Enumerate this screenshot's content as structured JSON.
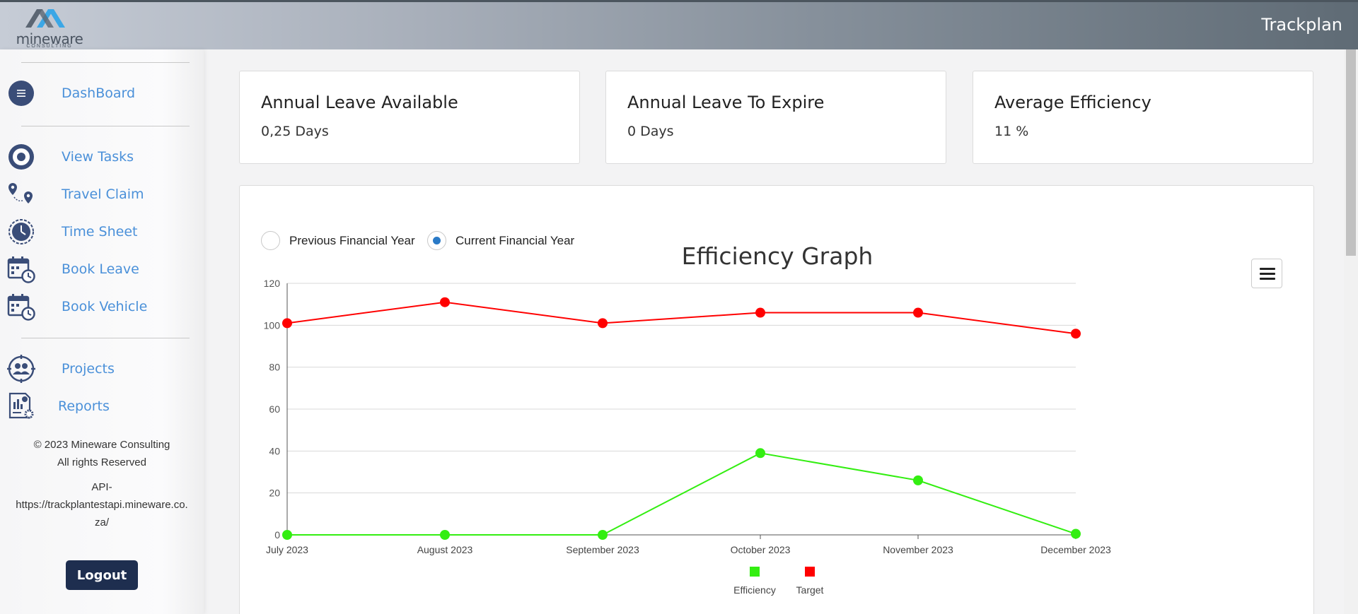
{
  "header": {
    "brand": "mineware",
    "brand_sub": "CONSULTING",
    "app_title": "Trackplan"
  },
  "sidebar": {
    "items": [
      {
        "label": "DashBoard",
        "icon": "menu-icon"
      },
      {
        "label": "View Tasks",
        "icon": "target-icon"
      },
      {
        "label": "Travel Claim",
        "icon": "map-pin-icon"
      },
      {
        "label": "Time Sheet",
        "icon": "clock-icon"
      },
      {
        "label": "Book Leave",
        "icon": "calendar-clock-icon"
      },
      {
        "label": "Book Vehicle",
        "icon": "calendar-clock-icon"
      },
      {
        "label": "Projects",
        "icon": "team-icon"
      },
      {
        "label": "Reports",
        "icon": "report-icon"
      }
    ],
    "footer": {
      "copyright": "© 2023 Mineware Consulting",
      "rights": "All rights Reserved",
      "api_label": "API-",
      "api_url_line1": "https://trackplantestapi.mineware.co.",
      "api_url_line2": "za/"
    },
    "logout_label": "Logout"
  },
  "cards": [
    {
      "title": "Annual Leave Available",
      "value": "0,25 Days"
    },
    {
      "title": "Annual Leave To Expire",
      "value": "0 Days"
    },
    {
      "title": "Average Efficiency",
      "value": "11 %"
    }
  ],
  "filters": {
    "previous_label": "Previous Financial Year",
    "current_label": "Current Financial Year",
    "selected": "current"
  },
  "colors": {
    "efficiency": "#33ee11",
    "target": "#ff0000",
    "radio_selected": "#2a7ac7",
    "logout_bg": "#1e2e4f",
    "link": "#4a90d9"
  },
  "chart_data": {
    "type": "line",
    "title": "Efficiency Graph",
    "categories": [
      "July 2023",
      "August 2023",
      "September 2023",
      "October 2023",
      "November 2023",
      "December 2023"
    ],
    "series": [
      {
        "name": "Efficiency",
        "values": [
          0,
          0,
          0,
          39,
          26,
          0.5
        ]
      },
      {
        "name": "Target",
        "values": [
          101,
          111,
          101,
          106,
          106,
          96
        ]
      }
    ],
    "ylim": [
      0,
      120
    ],
    "yticks": [
      0,
      20,
      40,
      60,
      80,
      100,
      120
    ],
    "xlabel": "",
    "ylabel": "",
    "grid": true,
    "legend": "bottom"
  }
}
